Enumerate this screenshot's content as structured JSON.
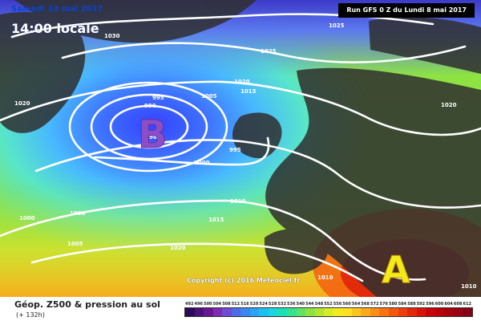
{
  "header": {
    "date": "Samedi 13 mai 2017",
    "time": "14:00 locale",
    "run": "Run GFS 0 Z du Lundi 8 mai 2017"
  },
  "map": {
    "low_label": "B",
    "high_label": "A",
    "isobars": [
      "1030",
      "1025",
      "1020",
      "1015",
      "1010",
      "1005",
      "1000",
      "995",
      "990",
      "985"
    ],
    "copyright": "Copyright (c) 2016 Meteociel.fr"
  },
  "footer": {
    "title": "Géop. Z500 & pression au sol",
    "subtitle": "(+ 132h)",
    "scale_labels": [
      "492",
      "496",
      "500",
      "504",
      "508",
      "512",
      "516",
      "520",
      "524",
      "528",
      "532",
      "536",
      "540",
      "544",
      "548",
      "552",
      "556",
      "560",
      "564",
      "568",
      "572",
      "576",
      "580",
      "584",
      "588",
      "592",
      "596",
      "600",
      "604",
      "608",
      "612"
    ],
    "scale_colors": [
      "#2b0a57",
      "#4b1079",
      "#6a1592",
      "#7f2bb1",
      "#6f4ad2",
      "#4d6be6",
      "#3a86f2",
      "#2aa3f7",
      "#1ac0f2",
      "#1bd5de",
      "#1be0b6",
      "#35e28e",
      "#62e264",
      "#8ee342",
      "#b3e630",
      "#d7ec27",
      "#f2eb22",
      "#fde022",
      "#fdc61f",
      "#fcaa1b",
      "#fb8f17",
      "#f97312",
      "#f5570e",
      "#ef3e0b",
      "#e52709",
      "#db1207",
      "#c70406",
      "#b90008",
      "#a7000d",
      "#980012",
      "#860016"
    ]
  }
}
